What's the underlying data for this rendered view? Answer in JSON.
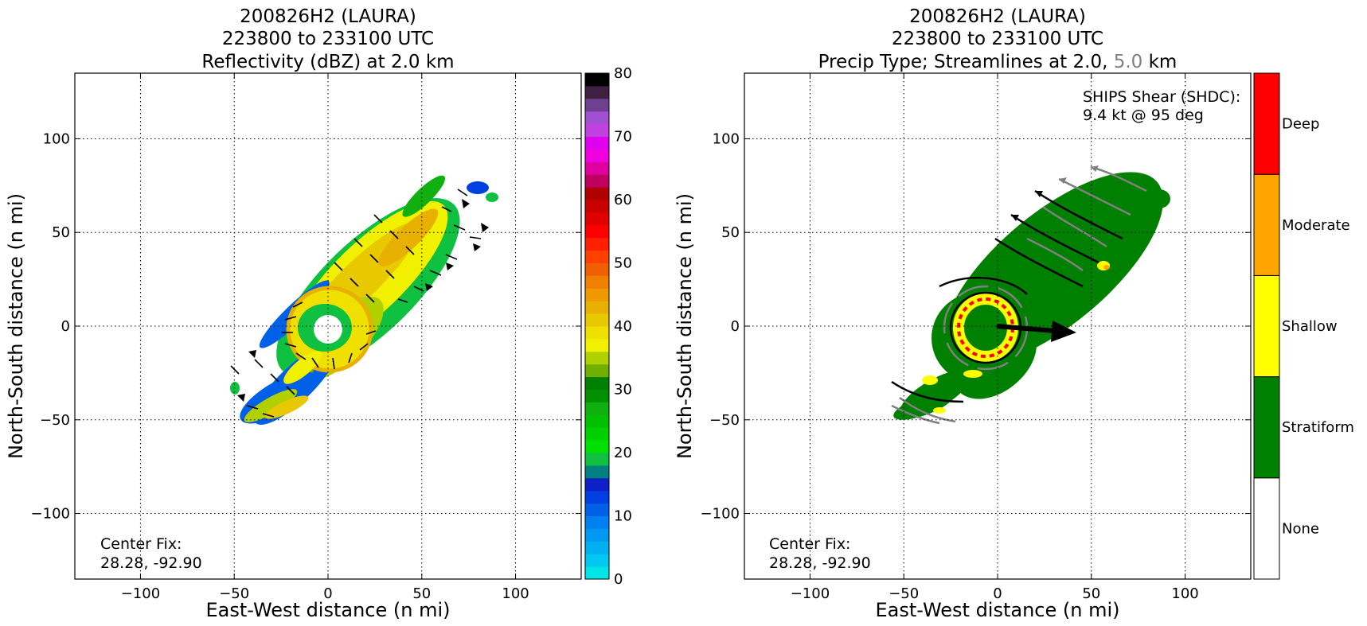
{
  "chart_data": [
    {
      "type": "heatmap",
      "title_lines": [
        "200826H2 (LAURA)",
        "223800 to 233100 UTC",
        "Reflectivity (dBZ) at 2.0 km"
      ],
      "xlabel": "East-West distance (n mi)",
      "ylabel": "North-South distance (n mi)",
      "xlim": [
        -135,
        135
      ],
      "ylim": [
        -135,
        135
      ],
      "xticks": [
        -100,
        -50,
        0,
        50,
        100
      ],
      "yticks": [
        -100,
        -50,
        0,
        50,
        100
      ],
      "xtick_labels": [
        "−100",
        "−50",
        "0",
        "50",
        "100"
      ],
      "ytick_labels": [
        "−100",
        "−50",
        "0",
        "50",
        "100"
      ],
      "grid": true,
      "annotation_lines": [
        "Center Fix:",
        "28.28, -92.90"
      ],
      "colorbar": {
        "label_values": [
          0,
          10,
          20,
          30,
          40,
          50,
          60,
          70,
          80
        ],
        "labels": [
          "0",
          "10",
          "20",
          "30",
          "40",
          "50",
          "60",
          "70",
          "80"
        ],
        "colors": [
          "#00e5e5",
          "#00c8f0",
          "#00b0f0",
          "#0098f0",
          "#0080f0",
          "#0060e8",
          "#0040e0",
          "#1020c8",
          "#008080",
          "#10c040",
          "#00e000",
          "#00d000",
          "#00c000",
          "#10b010",
          "#009000",
          "#008000",
          "#70b000",
          "#b0d000",
          "#f0f000",
          "#f0e000",
          "#e8c800",
          "#e8b000",
          "#f09800",
          "#f08000",
          "#f06000",
          "#ff4000",
          "#ff2000",
          "#ff0000",
          "#e00000",
          "#c80000",
          "#b00000",
          "#c00060",
          "#e000a0",
          "#f000e0",
          "#e000f0",
          "#c040e0",
          "#a050d0",
          "#704090",
          "#402040",
          "#000000"
        ]
      }
    },
    {
      "type": "heatmap",
      "title_lines": [
        "200826H2 (LAURA)",
        "223800 to 233100 UTC"
      ],
      "title_line3": {
        "prefix": "Precip Type; Streamlines at 2.0, ",
        "gray_part": "5.0",
        "suffix": " km"
      },
      "xlabel": "East-West distance (n mi)",
      "ylabel": "North-South distance (n mi)",
      "xlim": [
        -135,
        135
      ],
      "ylim": [
        -135,
        135
      ],
      "xticks": [
        -100,
        -50,
        0,
        50,
        100
      ],
      "yticks": [
        -100,
        -50,
        0,
        50,
        100
      ],
      "xtick_labels": [
        "−100",
        "−50",
        "0",
        "50",
        "100"
      ],
      "ytick_labels": [
        "−100",
        "−50",
        "0",
        "50",
        "100"
      ],
      "grid": true,
      "annotation_lines": [
        "Center Fix:",
        "28.28, -92.90"
      ],
      "shear_lines": [
        "SHIPS Shear (SHDC):",
        "9.4 kt @ 95 deg"
      ],
      "shear_vector": {
        "speed_kt": 9.4,
        "direction_deg": 95
      },
      "categories": [
        "None",
        "Stratiform",
        "Shallow",
        "Moderate",
        "Deep"
      ],
      "category_colors": [
        "#ffffff",
        "#008000",
        "#ffff00",
        "#ffa500",
        "#ff0000"
      ]
    }
  ]
}
